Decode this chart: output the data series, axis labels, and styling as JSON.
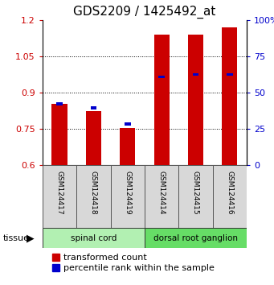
{
  "title": "GDS2209 / 1425492_at",
  "samples": [
    "GSM124417",
    "GSM124418",
    "GSM124419",
    "GSM124414",
    "GSM124415",
    "GSM124416"
  ],
  "red_values": [
    0.855,
    0.825,
    0.755,
    1.14,
    1.14,
    1.17
  ],
  "blue_values": [
    0.855,
    0.838,
    0.77,
    0.965,
    0.975,
    0.975
  ],
  "y_min": 0.6,
  "y_max": 1.2,
  "y_ticks": [
    0.6,
    0.75,
    0.9,
    1.05,
    1.2
  ],
  "y_ticks_right": [
    0,
    25,
    50,
    75,
    100
  ],
  "groups": [
    {
      "label": "spinal cord",
      "color": "#b2f0b2",
      "start": 0,
      "end": 3
    },
    {
      "label": "dorsal root ganglion",
      "color": "#66dd66",
      "start": 3,
      "end": 6
    }
  ],
  "tissue_label": "tissue",
  "red_color": "#cc0000",
  "blue_color": "#0000cc",
  "bar_width": 0.45,
  "blue_bar_width": 0.18,
  "blue_bar_height": 0.013,
  "title_fontsize": 11,
  "tick_fontsize": 8,
  "label_fontsize": 8,
  "legend_fontsize": 8,
  "grid_color": "black",
  "bg_color": "#d8d8d8",
  "plot_bg": "white",
  "spine_color": "#888888"
}
